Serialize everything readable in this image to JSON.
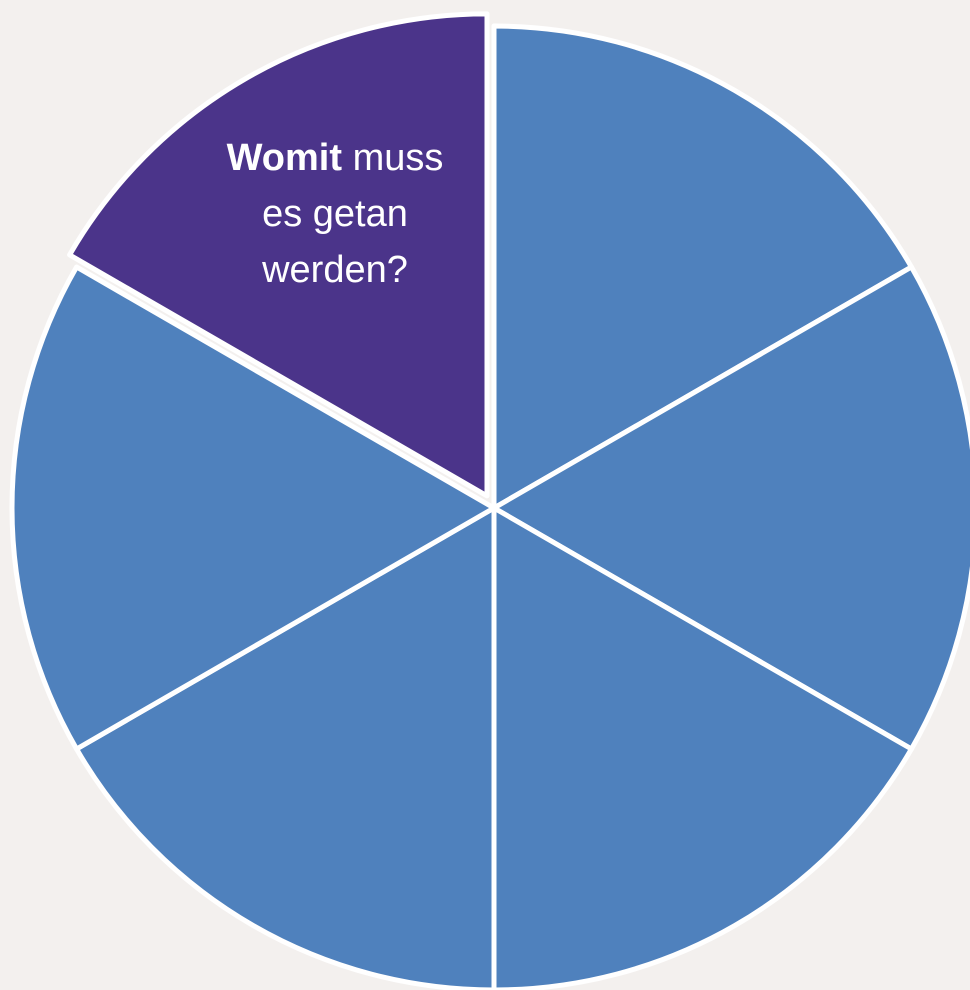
{
  "colors": {
    "background": "#f3f0ee",
    "segment_blue": "#4f81bd",
    "segment_highlight": "#4b348a",
    "divider": "#ffffff"
  },
  "segments": [
    {
      "id": "segment-1",
      "color": "#4f81bd",
      "highlighted": false
    },
    {
      "id": "segment-2",
      "color": "#4f81bd",
      "highlighted": false
    },
    {
      "id": "segment-3",
      "color": "#4f81bd",
      "highlighted": false
    },
    {
      "id": "segment-4",
      "color": "#4f81bd",
      "highlighted": false
    },
    {
      "id": "segment-5",
      "color": "#4f81bd",
      "highlighted": false
    },
    {
      "id": "segment-6",
      "color": "#4b348a",
      "highlighted": true
    }
  ],
  "highlight_label": {
    "bold_word": "Womit",
    "line1_rest": "muss",
    "line2": "es getan",
    "line3": "werden?"
  }
}
